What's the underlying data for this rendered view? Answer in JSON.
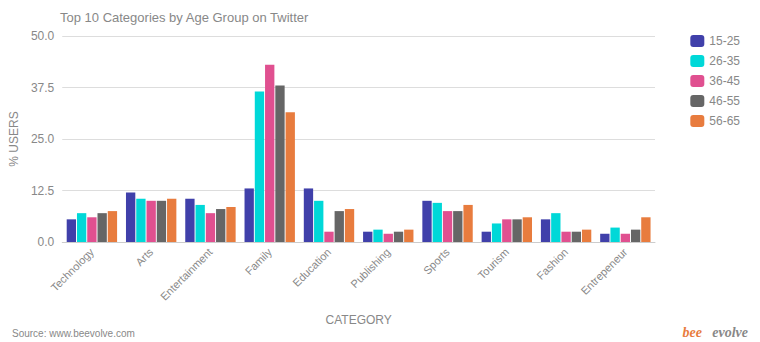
{
  "chart_data": {
    "type": "bar",
    "title": "Top 10 Categories by Age Group on Twitter",
    "xlabel": "CATEGORY",
    "ylabel": "% USERS",
    "categories": [
      "Technology",
      "Arts",
      "Entertainment",
      "Family",
      "Education",
      "Publishing",
      "Sports",
      "Tourism",
      "Fashion",
      "Entrepeneur"
    ],
    "series": [
      {
        "name": "15-25",
        "color": "#4040aa",
        "values": [
          5.5,
          12.0,
          10.5,
          13.0,
          13.0,
          2.5,
          10.0,
          2.5,
          5.5,
          2.0
        ]
      },
      {
        "name": "26-35",
        "color": "#00d8d8",
        "values": [
          7.0,
          10.5,
          9.0,
          36.5,
          10.0,
          3.0,
          9.5,
          4.5,
          7.0,
          3.5
        ]
      },
      {
        "name": "36-45",
        "color": "#e05090",
        "values": [
          6.0,
          10.0,
          7.0,
          43.0,
          2.5,
          2.0,
          7.5,
          5.5,
          2.5,
          2.0
        ]
      },
      {
        "name": "46-55",
        "color": "#666666",
        "values": [
          7.0,
          10.0,
          8.0,
          38.0,
          7.5,
          2.5,
          7.5,
          5.5,
          2.5,
          3.0
        ]
      },
      {
        "name": "56-65",
        "color": "#e87c3e",
        "values": [
          7.5,
          10.5,
          8.5,
          31.5,
          8.0,
          3.0,
          9.0,
          6.0,
          3.0,
          6.0
        ]
      }
    ],
    "ylim": [
      0,
      50.0
    ],
    "yticks": [
      {
        "value": 0,
        "label": "0.0"
      },
      12.5,
      {
        "value": 25,
        "label": "25.0"
      },
      37.5,
      {
        "value": 50,
        "label": "50.0"
      }
    ],
    "grid": true,
    "legend": "right",
    "annotations": [
      {
        "text": "Source: www.beevolve.com",
        "color": "#888888"
      },
      {
        "text": "bee",
        "color": "#e87c3e"
      },
      {
        "text": "evolve",
        "color": "#888888"
      }
    ]
  }
}
